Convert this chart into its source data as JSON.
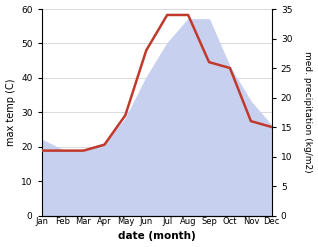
{
  "months": [
    "Jan",
    "Feb",
    "Mar",
    "Apr",
    "May",
    "Jun",
    "Jul",
    "Aug",
    "Sep",
    "Oct",
    "Nov",
    "Dec"
  ],
  "max_temp": [
    22,
    19,
    19,
    21,
    28,
    40,
    50,
    57,
    57,
    43,
    33,
    26
  ],
  "precipitation": [
    11,
    11,
    11,
    12,
    17,
    28,
    34,
    34,
    26,
    25,
    16,
    15
  ],
  "temp_color_fill": "#c8d0f0",
  "temp_fill_alpha": 1.0,
  "precip_color": "#c0392b",
  "precip_linewidth": 1.8,
  "xlabel": "date (month)",
  "ylabel_left": "max temp (C)",
  "ylabel_right": "med. precipitation (kg/m2)",
  "ylim_left": [
    0,
    60
  ],
  "ylim_right": [
    0,
    35
  ],
  "yticks_left": [
    0,
    10,
    20,
    30,
    40,
    50,
    60
  ],
  "yticks_right": [
    0,
    5,
    10,
    15,
    20,
    25,
    30,
    35
  ],
  "background_color": "#ffffff",
  "grid_color": "#cccccc"
}
